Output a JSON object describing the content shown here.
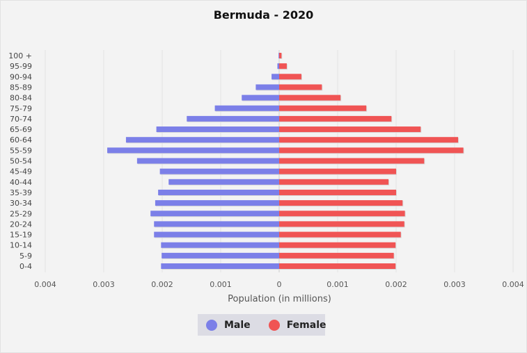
{
  "chart_data": {
    "type": "bar",
    "orientation": "horizontal-pyramid",
    "title": "Bermuda - 2020",
    "xlabel": "Population (in millions)",
    "ylabel": "",
    "xlim": [
      -0.004,
      0.004
    ],
    "x_ticks": [
      -0.004,
      -0.003,
      -0.002,
      -0.001,
      0,
      0.001,
      0.002,
      0.003,
      0.004
    ],
    "x_tick_labels": [
      "0.004",
      "0.003",
      "0.002",
      "0.001",
      "0",
      "0.001",
      "0.002",
      "0.003",
      "0.004"
    ],
    "grid": true,
    "legend_position": "bottom-center",
    "categories": [
      "100 +",
      "95-99",
      "90-94",
      "85-89",
      "80-84",
      "75-79",
      "70-74",
      "65-69",
      "60-64",
      "55-59",
      "50-54",
      "45-49",
      "40-44",
      "35-39",
      "30-34",
      "25-29",
      "20-24",
      "15-19",
      "10-14",
      "5-9",
      "0-4"
    ],
    "series": [
      {
        "name": "Male",
        "color": "#7b7fe8",
        "values": [
          1e-05,
          3e-05,
          0.00013,
          0.0004,
          0.00064,
          0.0011,
          0.00158,
          0.0021,
          0.00262,
          0.00294,
          0.00243,
          0.00204,
          0.00189,
          0.00207,
          0.00212,
          0.0022,
          0.00214,
          0.00214,
          0.00202,
          0.00201,
          0.00202
        ]
      },
      {
        "name": "Female",
        "color": "#f05454",
        "values": [
          4e-05,
          0.00013,
          0.00038,
          0.00073,
          0.00105,
          0.00149,
          0.00192,
          0.00242,
          0.00306,
          0.00315,
          0.00248,
          0.002,
          0.00187,
          0.002,
          0.00211,
          0.00215,
          0.00214,
          0.00208,
          0.00199,
          0.00196,
          0.00199
        ]
      }
    ]
  }
}
